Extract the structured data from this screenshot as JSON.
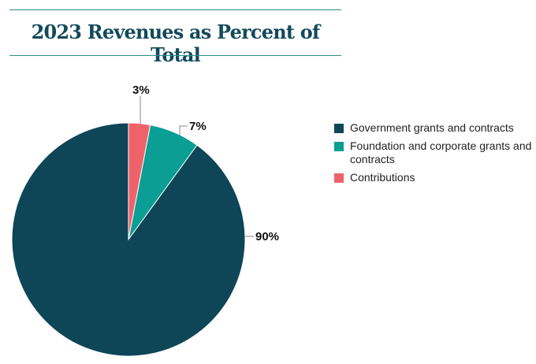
{
  "chart_data": {
    "type": "pie",
    "title": "2023 Revenues as Percent of Total",
    "slices": [
      {
        "name": "Contributions",
        "value": 3,
        "label": "3%",
        "color": "#f0626a"
      },
      {
        "name": "Foundation and corporate grants and contracts",
        "value": 7,
        "label": "7%",
        "color": "#0a9e94"
      },
      {
        "name": "Government grants and contracts",
        "value": 90,
        "label": "90%",
        "color": "#0e4657"
      }
    ],
    "legend": [
      "Government grants and contracts",
      "Foundation and corporate grants and contracts",
      "Contributions"
    ],
    "legend_colors": [
      "#0e4657",
      "#0a9e94",
      "#f0626a"
    ],
    "legend_position": "right"
  }
}
